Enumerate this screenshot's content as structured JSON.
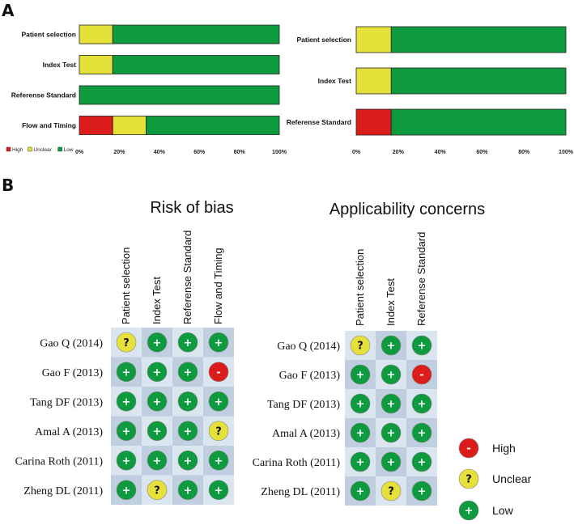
{
  "panel_labels": {
    "a": "A",
    "b": "B"
  },
  "colors": {
    "high": "#dc1b1b",
    "unclear": "#e6e03a",
    "low": "#0e9a3e",
    "cell_light": "#dbe5ef",
    "cell_dark": "#c0cfdf"
  },
  "chart_data": [
    {
      "type": "bar",
      "orientation": "horizontal-stacked-percent",
      "categories": [
        "Patient selection",
        "Index Test",
        "Referense Standard",
        "Flow and Timing"
      ],
      "series": [
        {
          "name": "High",
          "values": [
            0,
            0,
            0,
            16.7
          ]
        },
        {
          "name": "Unclear",
          "values": [
            16.7,
            16.7,
            0,
            16.7
          ]
        },
        {
          "name": "Low",
          "values": [
            83.3,
            83.3,
            100,
            66.6
          ]
        }
      ],
      "xticks": [
        "0%",
        "20%",
        "40%",
        "60%",
        "80%",
        "100%"
      ],
      "xlim": [
        0,
        100
      ],
      "legend": "bottom-left"
    },
    {
      "type": "bar",
      "orientation": "horizontal-stacked-percent",
      "categories": [
        "Patient selection",
        "Index Test",
        "Referense Standard"
      ],
      "series": [
        {
          "name": "High",
          "values": [
            0,
            0,
            16.7
          ]
        },
        {
          "name": "Unclear",
          "values": [
            16.7,
            16.7,
            0
          ]
        },
        {
          "name": "Low",
          "values": [
            83.3,
            83.3,
            83.3
          ]
        }
      ],
      "xticks": [
        "0%",
        "20%",
        "40%",
        "60%",
        "80%",
        "100%"
      ],
      "xlim": [
        0,
        100
      ]
    },
    {
      "type": "table",
      "title": "Risk of bias",
      "columns": [
        "Patient selection",
        "Index Test",
        "Referense Standard",
        "Flow and Timing"
      ],
      "rows": [
        {
          "study": "Gao Q (2014)",
          "values": [
            "unclear",
            "low",
            "low",
            "low"
          ]
        },
        {
          "study": "Gao F (2013)",
          "values": [
            "low",
            "low",
            "low",
            "high"
          ]
        },
        {
          "study": "Tang DF (2013)",
          "values": [
            "low",
            "low",
            "low",
            "low"
          ]
        },
        {
          "study": "Amal A (2013)",
          "values": [
            "low",
            "low",
            "low",
            "unclear"
          ]
        },
        {
          "study": "Carina Roth (2011)",
          "values": [
            "low",
            "low",
            "low",
            "low"
          ]
        },
        {
          "study": "Zheng DL (2011)",
          "values": [
            "low",
            "unclear",
            "low",
            "low"
          ]
        }
      ]
    },
    {
      "type": "table",
      "title": "Applicability concerns",
      "columns": [
        "Patient selection",
        "Index Test",
        "Referense Standard"
      ],
      "rows": [
        {
          "study": "Gao Q (2014)",
          "values": [
            "unclear",
            "low",
            "low"
          ]
        },
        {
          "study": "Gao F (2013)",
          "values": [
            "low",
            "low",
            "high"
          ]
        },
        {
          "study": "Tang DF (2013)",
          "values": [
            "low",
            "low",
            "low"
          ]
        },
        {
          "study": "Amal A (2013)",
          "values": [
            "low",
            "low",
            "low"
          ]
        },
        {
          "study": "Carina Roth (2011)",
          "values": [
            "low",
            "low",
            "low"
          ]
        },
        {
          "study": "Zheng DL (2011)",
          "values": [
            "low",
            "unclear",
            "low"
          ]
        }
      ]
    }
  ],
  "symbols": {
    "high": "-",
    "unclear": "?",
    "low": "+"
  },
  "legend": [
    {
      "key": "high",
      "label": "High"
    },
    {
      "key": "unclear",
      "label": "Unclear"
    },
    {
      "key": "low",
      "label": "Low"
    }
  ]
}
